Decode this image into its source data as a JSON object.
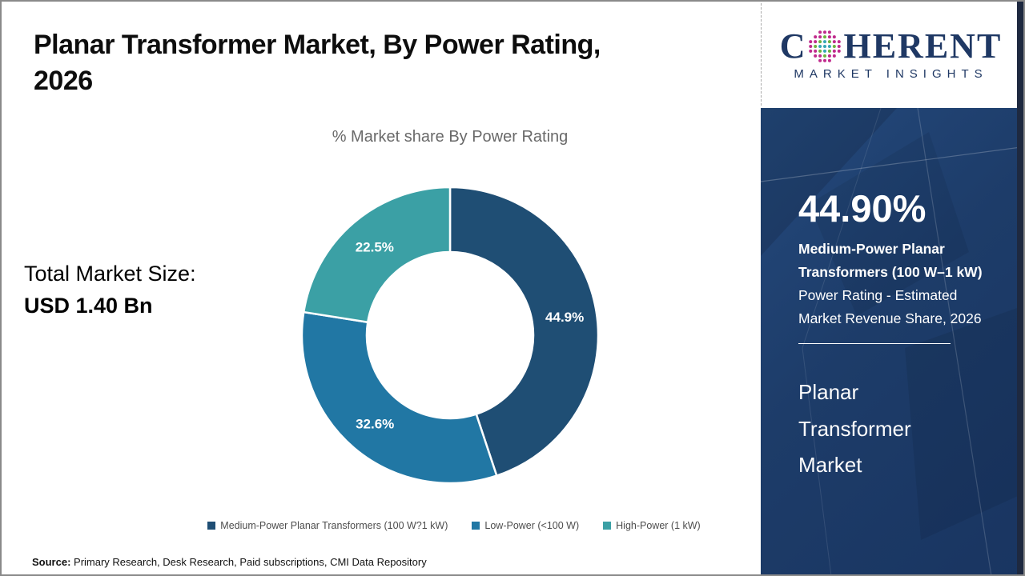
{
  "header": {
    "title": "Planar Transformer Market, By Power Rating, 2026",
    "title_lines": [
      "Planar Transformer Market, By Power Rating,",
      "2026"
    ]
  },
  "chart_data": {
    "type": "pie",
    "donut": true,
    "title": "% Market share By Power Rating",
    "start_angle_deg": 0,
    "direction": "clockwise",
    "legend_position": "bottom",
    "slices": [
      {
        "label": "Medium-Power Planar Transformers (100 W?1 kW)",
        "value": 44.9,
        "data_label": "44.9%",
        "color": "#1F4E74"
      },
      {
        "label": "Low-Power (<100 W)",
        "value": 32.6,
        "data_label": "32.6%",
        "color": "#2177A4"
      },
      {
        "label": "High-Power (1 kW)",
        "value": 22.5,
        "data_label": "22.5%",
        "color": "#3BA0A5"
      }
    ]
  },
  "total_market": {
    "label": "Total Market Size:",
    "value": "USD 1.40 Bn"
  },
  "source": {
    "prefix": "Source:",
    "text": " Primary Research, Desk Research, Paid subscriptions, CMI Data Repository"
  },
  "brand": {
    "logo_first_letter": "C",
    "logo_rest": "HERENT",
    "logo_subtext": "MARKET INSIGHTS",
    "navy": "#1f3864",
    "globe_colors": {
      "inner": "#35a7b5",
      "middle": "#6db33f",
      "outer": "#c02a8c"
    }
  },
  "side_panel": {
    "stat_value": "44.90%",
    "stat_desc_bold": "Medium-Power Planar Transformers (100 W–1 kW)",
    "stat_desc_rest": " Power Rating - Estimated Market Revenue Share, 2026",
    "market_name": "Planar Transformer Market",
    "bg_color": "#1d3c69"
  }
}
